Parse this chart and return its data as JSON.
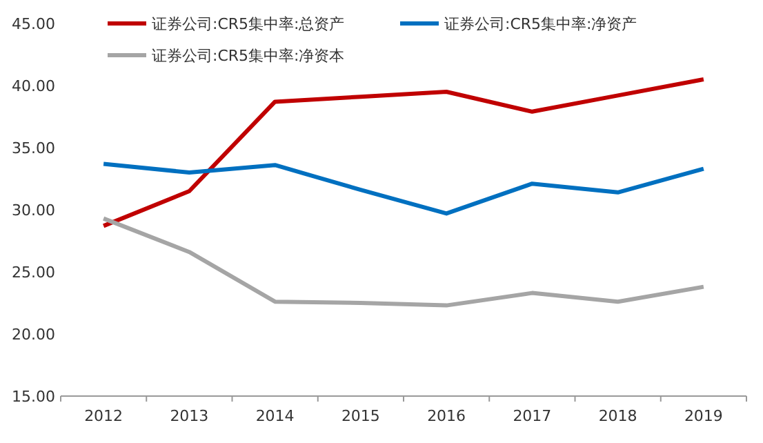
{
  "chart_data": {
    "type": "line",
    "categories": [
      "2012",
      "2013",
      "2014",
      "2015",
      "2016",
      "2017",
      "2018",
      "2019"
    ],
    "ylim": [
      15,
      45
    ],
    "yticks": [
      {
        "value": 15,
        "label": "15.00"
      },
      {
        "value": 20,
        "label": "20.00"
      },
      {
        "value": 25,
        "label": "25.00"
      },
      {
        "value": 30,
        "label": "30.00"
      },
      {
        "value": 35,
        "label": "35.00"
      },
      {
        "value": 40,
        "label": "40.00"
      },
      {
        "value": 45,
        "label": "45.00"
      }
    ],
    "legend": "top",
    "grid": false,
    "series": [
      {
        "name": "证券公司:CR5集中率:总资产",
        "color": "#c00000",
        "values": [
          28.7,
          31.5,
          38.7,
          39.1,
          39.5,
          37.9,
          39.2,
          40.5
        ]
      },
      {
        "name": "证券公司:CR5集中率:净资产",
        "color": "#0070c0",
        "values": [
          33.7,
          33.0,
          33.6,
          31.6,
          29.7,
          32.1,
          31.4,
          33.3
        ]
      },
      {
        "name": "证券公司:CR5集中率:净资本",
        "color": "#a5a5a5",
        "values": [
          29.3,
          26.6,
          22.6,
          22.5,
          22.3,
          23.3,
          22.6,
          23.8
        ]
      }
    ]
  }
}
